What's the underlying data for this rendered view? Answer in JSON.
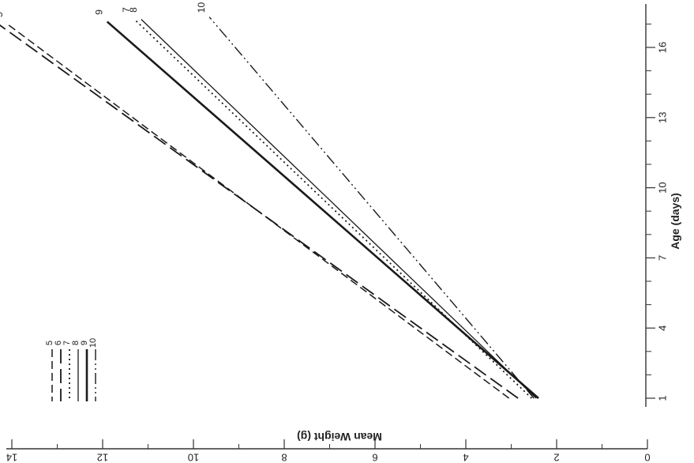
{
  "chart_data": {
    "type": "line",
    "title": "",
    "xlabel": "Age (days)",
    "ylabel": "Mean Weight (g)",
    "xlim": [
      0,
      18
    ],
    "ylim": [
      0,
      14
    ],
    "x_ticks": [
      "1",
      "4",
      "7",
      "10",
      "13",
      "16"
    ],
    "y_ticks": [
      "0",
      "2",
      "4",
      "6",
      "8",
      "10",
      "12",
      "14"
    ],
    "orientation": "rotated 90 degrees clockwise",
    "grid": false,
    "legend_position": "bottom-right (upper-left as printed)",
    "series": [
      {
        "name": "5",
        "dash": "dashed",
        "x": [
          1,
          17
        ],
        "y": [
          3.05,
          14.1
        ]
      },
      {
        "name": "6",
        "dash": "long-dash",
        "x": [
          1,
          17
        ],
        "y": [
          2.85,
          14.3
        ]
      },
      {
        "name": "7",
        "dash": "dotted",
        "x": [
          1,
          17.2
        ],
        "y": [
          2.55,
          11.3
        ]
      },
      {
        "name": "8",
        "dash": "solid-thin",
        "x": [
          1,
          17.2
        ],
        "y": [
          2.45,
          11.15
        ]
      },
      {
        "name": "9",
        "dash": "solid-double",
        "x": [
          1,
          17.1
        ],
        "y": [
          2.4,
          11.9
        ]
      },
      {
        "name": "10",
        "dash": "dash-dot-dot",
        "x": [
          1,
          17.3
        ],
        "y": [
          2.5,
          9.65
        ]
      }
    ],
    "end_labels": [
      "5",
      "6",
      "7",
      "8",
      "9",
      "10"
    ]
  }
}
